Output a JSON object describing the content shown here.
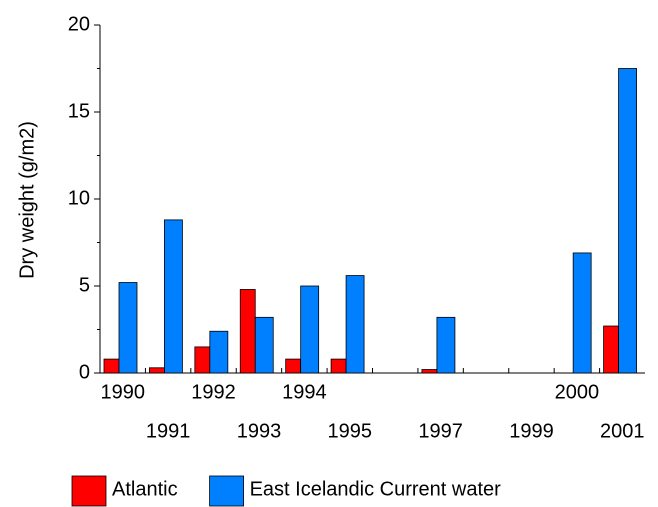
{
  "chart_data": {
    "type": "bar",
    "y_label": "Dry weight (g/m2)",
    "categories": [
      "1990",
      "1991",
      "1992",
      "1993",
      "1994",
      "1995",
      null,
      "1997",
      null,
      "1999",
      "2000",
      "2001"
    ],
    "series": [
      {
        "name": "Atlantic",
        "color": "#ff0000",
        "values": [
          0.8,
          0.3,
          1.5,
          4.8,
          0.8,
          0.8,
          null,
          0.2,
          null,
          null,
          null,
          2.7
        ]
      },
      {
        "name": "East Icelandic Current water",
        "color": "#0080ff",
        "values": [
          5.2,
          8.8,
          2.4,
          3.2,
          5.0,
          5.6,
          null,
          3.2,
          null,
          null,
          6.9,
          17.5
        ]
      }
    ],
    "ylim": [
      0,
      20
    ],
    "yticks": [
      0,
      5,
      10,
      15,
      20
    ],
    "grid": false
  }
}
